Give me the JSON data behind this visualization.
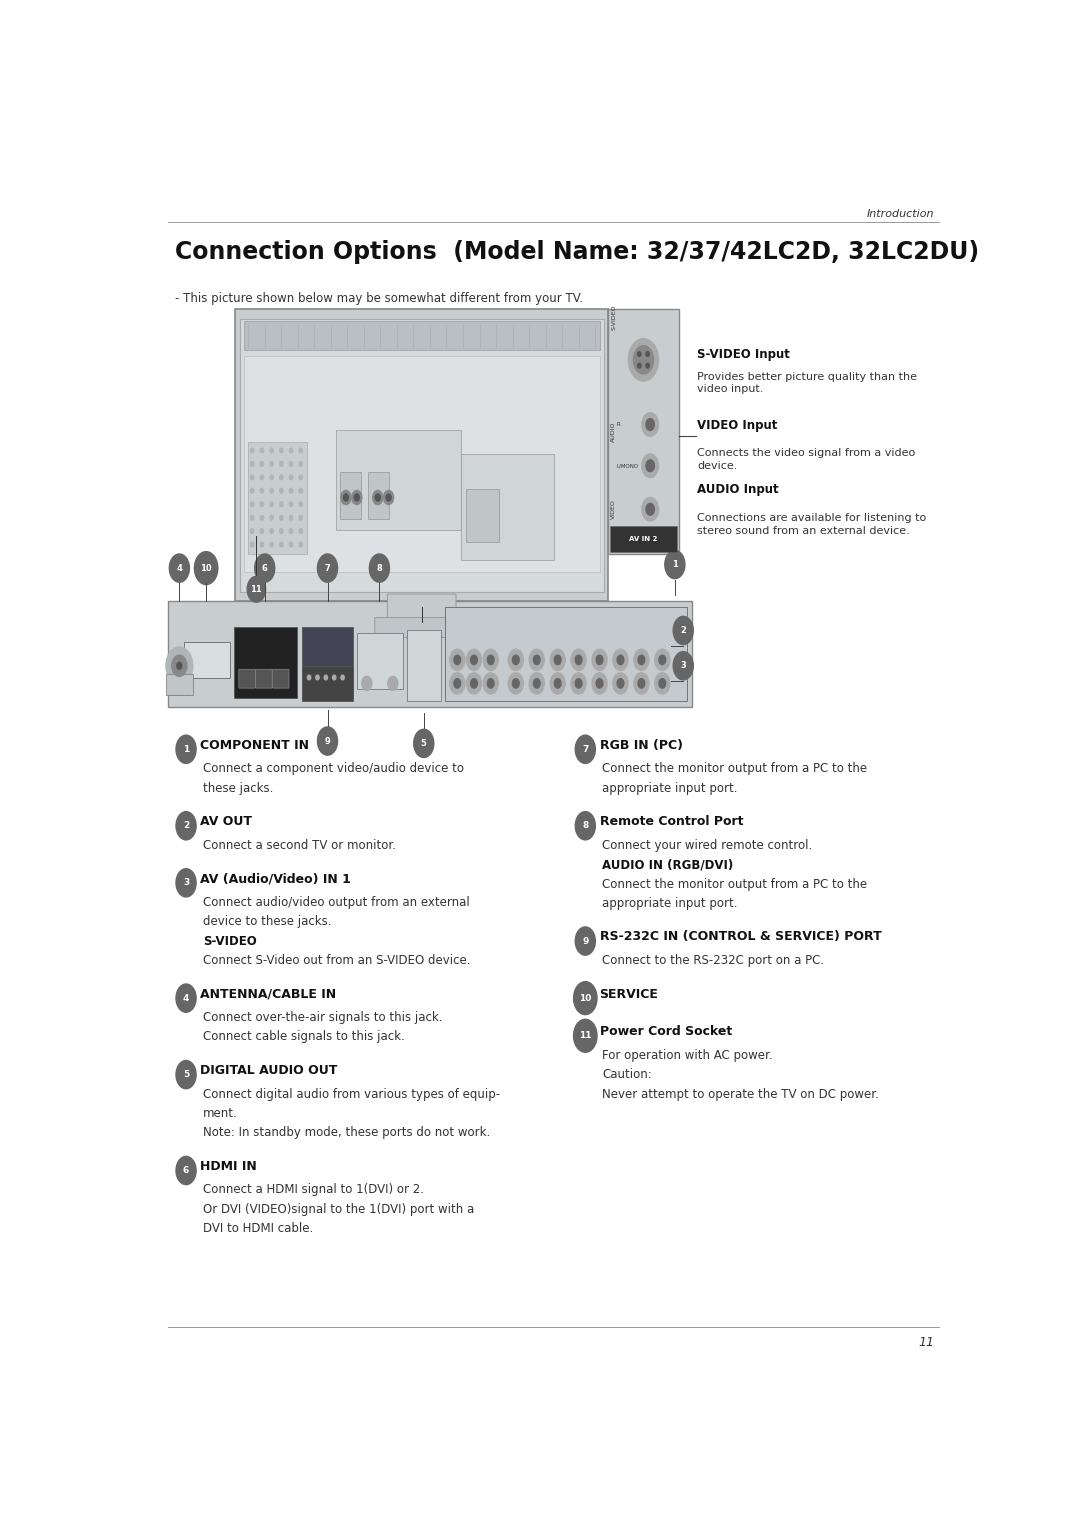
{
  "page_width": 10.8,
  "page_height": 15.28,
  "bg_color": "#ffffff",
  "header_text": "Introduction",
  "title": "Connection Options  (Model Name: 32/37/42LC2D, 32LC2DU)",
  "subtitle": "- This picture shown below may be somewhat different from your TV.",
  "side_labels": [
    {
      "title": "S-VIDEO Input",
      "desc": "Provides better picture quality than the\nvideo input."
    },
    {
      "title": "VIDEO Input",
      "desc": "Connects the video signal from a video\ndevice."
    },
    {
      "title": "AUDIO Input",
      "desc": "Connections are available for listening to\nstereo sound from an external device."
    }
  ],
  "items_left": [
    {
      "num": "1",
      "title": "COMPONENT IN",
      "body": [
        {
          "text": "Connect a component video/audio device to\nthese jacks.",
          "bold": false
        }
      ]
    },
    {
      "num": "2",
      "title": "AV OUT",
      "body": [
        {
          "text": "Connect a second TV or monitor.",
          "bold": false
        }
      ]
    },
    {
      "num": "3",
      "title": "AV (Audio/Video) IN 1",
      "body": [
        {
          "text": "Connect audio/video output from an external\ndevice to these jacks.",
          "bold": false
        },
        {
          "text": "S-VIDEO",
          "bold": true
        },
        {
          "text": "Connect S-Video out from an S-VIDEO device.",
          "bold": false
        }
      ]
    },
    {
      "num": "4",
      "title": "ANTENNA/CABLE IN",
      "body": [
        {
          "text": "Connect over-the-air signals to this jack.",
          "bold": false
        },
        {
          "text": "Connect cable signals to this jack.",
          "bold": false
        }
      ]
    },
    {
      "num": "5",
      "title": "DIGITAL AUDIO OUT",
      "body": [
        {
          "text": "Connect digital audio from various types of equip-\nment.",
          "bold": false
        },
        {
          "text": "Note: In standby mode, these ports do not work.",
          "bold": false
        }
      ]
    },
    {
      "num": "6",
      "title": "HDMI IN",
      "body": [
        {
          "text": "Connect a HDMI signal to 1(DVI) or 2.",
          "bold": false
        },
        {
          "text": "Or DVI (VIDEO)signal to the 1(DVI) port with a\nDVI to HDMI cable.",
          "bold": false
        }
      ]
    }
  ],
  "items_right": [
    {
      "num": "7",
      "title": "RGB IN (PC)",
      "body": [
        {
          "text": "Connect the monitor output from a PC to the\nappropriate input port.",
          "bold": false
        }
      ]
    },
    {
      "num": "8",
      "title": "Remote Control Port",
      "body": [
        {
          "text": "Connect your wired remote control.",
          "bold": false
        },
        {
          "text": "AUDIO IN (RGB/DVI)",
          "bold": true
        },
        {
          "text": "Connect the monitor output from a PC to the\nappropriate input port.",
          "bold": false
        }
      ]
    },
    {
      "num": "9",
      "title": "RS-232C IN (CONTROL & SERVICE) PORT",
      "body": [
        {
          "text": "Connect to the RS-232C port on a PC.",
          "bold": false
        }
      ]
    },
    {
      "num": "10",
      "title": "SERVICE",
      "body": []
    },
    {
      "num": "11",
      "title": "Power Cord Socket",
      "body": [
        {
          "text": "For operation with AC power.",
          "bold": false
        },
        {
          "text": "Caution:",
          "bold": false
        },
        {
          "text": "Never attempt to operate the TV on DC power.",
          "bold": false
        }
      ]
    }
  ],
  "page_number": "11",
  "circle_color": "#666666",
  "circle_text_color": "#ffffff"
}
